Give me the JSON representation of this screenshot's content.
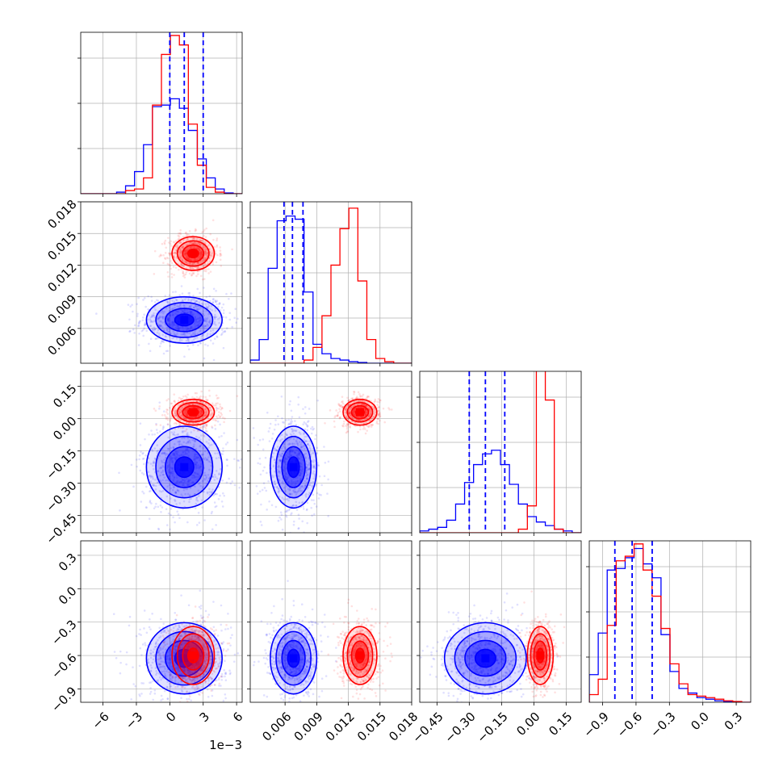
{
  "chart_data": {
    "type": "corner",
    "grid": true,
    "offset_text": "1e−3",
    "colors": {
      "blue": "#0000ff",
      "red": "#ff0000",
      "grid": "#b0b0b0"
    },
    "series": [
      {
        "color": "#0000ff",
        "means": [
          1.3,
          0.0068,
          -0.225,
          -0.625
        ],
        "sigmas": [
          1.7,
          0.0011,
          0.095,
          0.16
        ],
        "hist_quantiles": [
          [
            0.0,
            1.3,
            3.0
          ],
          [
            0.0059,
            0.0067,
            0.0077
          ],
          [
            -0.3,
            -0.225,
            -0.135
          ],
          [
            -0.79,
            -0.635,
            -0.455
          ]
        ]
      },
      {
        "color": "#ff0000",
        "means": [
          2.1,
          0.0131,
          0.03,
          -0.6
        ],
        "sigmas": [
          0.95,
          0.0008,
          0.03,
          0.13
        ]
      }
    ],
    "params": [
      {
        "range": [
          -8,
          6.5
        ],
        "ticks": [
          -6,
          -3,
          0,
          3,
          6
        ],
        "tick_labels": [
          "−6",
          "−3",
          "0",
          "3",
          "6"
        ]
      },
      {
        "range": [
          0.0027,
          0.018
        ],
        "ticks": [
          0.006,
          0.009,
          0.012,
          0.015,
          0.018
        ],
        "tick_labels": [
          "0.006",
          "0.009",
          "0.012",
          "0.015",
          "0.018"
        ]
      },
      {
        "range": [
          -0.53,
          0.22
        ],
        "ticks": [
          -0.45,
          -0.3,
          -0.15,
          0.0,
          0.15
        ],
        "tick_labels": [
          "−0.45",
          "−0.30",
          "−0.15",
          "0.00",
          "0.15"
        ]
      },
      {
        "range": [
          -1.02,
          0.43
        ],
        "ticks": [
          -0.9,
          -0.6,
          -0.3,
          0.0,
          0.3
        ],
        "tick_labels": [
          "−0.9",
          "−0.6",
          "−0.3",
          "0.0",
          "0.3"
        ]
      }
    ],
    "histograms": {
      "blue": [
        [
          0,
          0,
          0,
          0,
          0.01,
          0.05,
          0.14,
          0.31,
          0.55,
          0.56,
          0.6,
          0.54,
          0.4,
          0.22,
          0.1,
          0.03,
          0.005,
          0
        ],
        [
          0.02,
          0.15,
          0.6,
          0.9,
          0.93,
          0.91,
          0.45,
          0.12,
          0.06,
          0.03,
          0.02,
          0.01,
          0.005,
          0,
          0,
          0,
          0,
          0
        ],
        [
          0.01,
          0.02,
          0.03,
          0.07,
          0.16,
          0.28,
          0.38,
          0.44,
          0.46,
          0.38,
          0.27,
          0.16,
          0.09,
          0.06,
          0.04,
          0.02,
          0.01,
          0
        ],
        [
          0.18,
          0.45,
          0.86,
          0.87,
          0.94,
          1.0,
          0.9,
          0.81,
          0.44,
          0.2,
          0.09,
          0.06,
          0.03,
          0.02,
          0.01,
          0.005,
          0,
          0
        ]
      ],
      "red": [
        [
          0,
          0,
          0,
          0,
          0,
          0.02,
          0.03,
          0.1,
          0.56,
          0.88,
          1.0,
          0.94,
          0.44,
          0.18,
          0.04,
          0.01,
          0,
          0
        ],
        [
          0,
          0,
          0,
          0,
          0,
          0,
          0.02,
          0.1,
          0.3,
          0.62,
          0.85,
          0.98,
          0.52,
          0.15,
          0.03,
          0.01,
          0,
          0
        ],
        [
          0,
          0,
          0,
          0,
          0,
          0,
          0,
          0,
          0,
          0,
          0,
          0.02,
          0.15,
          0.97,
          0.74,
          0.02,
          0,
          0
        ],
        [
          0.05,
          0.15,
          0.5,
          0.92,
          0.95,
          1.03,
          0.86,
          0.69,
          0.48,
          0.25,
          0.12,
          0.05,
          0.04,
          0.03,
          0.02,
          0.01,
          0.005,
          0
        ]
      ]
    },
    "diag_hist_ymax": [
      1.02,
      1.02,
      0.9,
      1.05
    ],
    "diag_yticks_frac": [
      0.28,
      0.56,
      0.84
    ],
    "contour_levels_sigma": [
      0.5,
      1.0,
      1.5,
      2.0
    ]
  }
}
